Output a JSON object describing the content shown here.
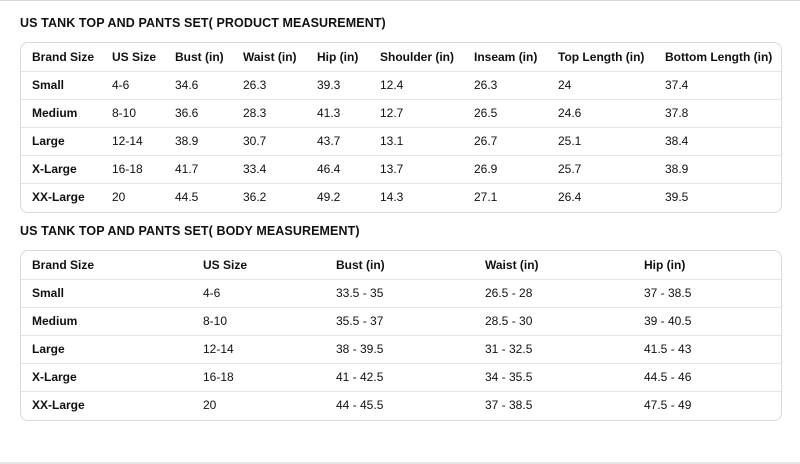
{
  "product": {
    "title": "US TANK TOP AND PANTS SET( PRODUCT MEASUREMENT)",
    "headers": [
      "Brand Size",
      "US Size",
      "Bust (in)",
      "Waist (in)",
      "Hip (in)",
      "Shoulder (in)",
      "Inseam (in)",
      "Top Length (in)",
      "Bottom Length (in)"
    ],
    "rows": [
      [
        "Small",
        "4-6",
        "34.6",
        "26.3",
        "39.3",
        "12.4",
        "26.3",
        "24",
        "37.4"
      ],
      [
        "Medium",
        "8-10",
        "36.6",
        "28.3",
        "41.3",
        "12.7",
        "26.5",
        "24.6",
        "37.8"
      ],
      [
        "Large",
        "12-14",
        "38.9",
        "30.7",
        "43.7",
        "13.1",
        "26.7",
        "25.1",
        "38.4"
      ],
      [
        "X-Large",
        "16-18",
        "41.7",
        "33.4",
        "46.4",
        "13.7",
        "26.9",
        "25.7",
        "38.9"
      ],
      [
        "XX-Large",
        "20",
        "44.5",
        "36.2",
        "49.2",
        "14.3",
        "27.1",
        "26.4",
        "39.5"
      ]
    ]
  },
  "body": {
    "title": "US TANK TOP AND PANTS SET( BODY MEASUREMENT)",
    "headers": [
      "Brand Size",
      "US Size",
      "Bust (in)",
      "Waist (in)",
      "Hip (in)"
    ],
    "rows": [
      [
        "Small",
        "4-6",
        "33.5 - 35",
        "26.5 - 28",
        "37 - 38.5"
      ],
      [
        "Medium",
        "8-10",
        "35.5 - 37",
        "28.5 - 30",
        "39 - 40.5"
      ],
      [
        "Large",
        "12-14",
        "38 - 39.5",
        "31 - 32.5",
        "41.5 - 43"
      ],
      [
        "X-Large",
        "16-18",
        "41 - 42.5",
        "34 - 35.5",
        "44.5 - 46"
      ],
      [
        "XX-Large",
        "20",
        "44 - 45.5",
        "37 - 38.5",
        "47.5 - 49"
      ]
    ]
  }
}
